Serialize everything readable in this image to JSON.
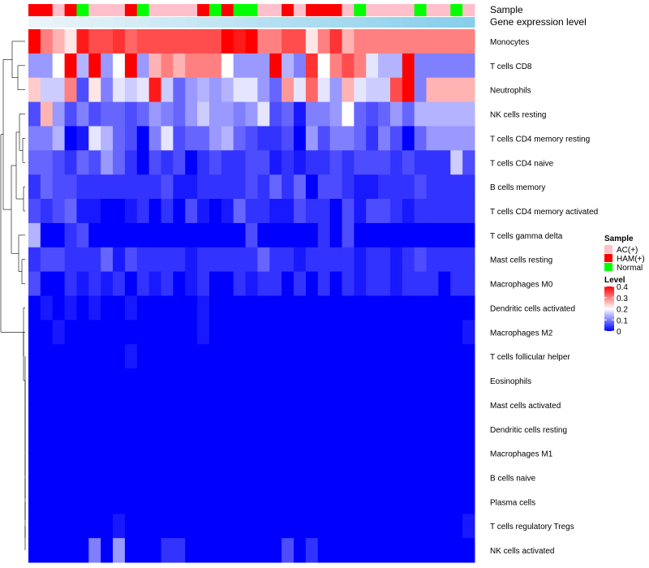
{
  "chart_data": {
    "type": "heatmap",
    "annotation_tracks": [
      "Sample",
      "Gene expression level"
    ],
    "sample_colors": {
      "AC(+)": "#ffc0cb",
      "HAM(+)": "#ff0000",
      "Normal": "#00ff00"
    },
    "samples": [
      "HAM(+)",
      "HAM(+)",
      "AC(+)",
      "HAM(+)",
      "Normal",
      "AC(+)",
      "AC(+)",
      "AC(+)",
      "HAM(+)",
      "Normal",
      "AC(+)",
      "AC(+)",
      "AC(+)",
      "AC(+)",
      "HAM(+)",
      "Normal",
      "HAM(+)",
      "Normal",
      "Normal",
      "AC(+)",
      "AC(+)",
      "HAM(+)",
      "AC(+)",
      "HAM(+)",
      "HAM(+)",
      "HAM(+)",
      "AC(+)",
      "Normal",
      "AC(+)",
      "AC(+)",
      "AC(+)",
      "AC(+)",
      "Normal",
      "AC(+)",
      "AC(+)",
      "Normal",
      "AC(+)"
    ],
    "rows": [
      "Monocytes",
      "T cells CD8",
      "Neutrophils",
      "NK cells resting",
      "T cells CD4 memory resting",
      "T cells CD4 naive",
      "B cells memory",
      "T cells CD4 memory activated",
      "T cells gamma delta",
      "Mast cells resting",
      "Macrophages M0",
      "Dendritic cells activated",
      "Macrophages M2",
      "T cells follicular helper",
      "Eosinophils",
      "Mast cells activated",
      "Dendritic cells resting",
      "Macrophages M1",
      "B cells naive",
      "Plasma cells",
      "T cells regulatory  Tregs",
      "NK cells activated"
    ],
    "values": [
      [
        0.42,
        0.3,
        0.26,
        0.22,
        0.38,
        0.34,
        0.34,
        0.36,
        0.32,
        0.34,
        0.34,
        0.34,
        0.34,
        0.34,
        0.34,
        0.34,
        0.4,
        0.38,
        0.42,
        0.3,
        0.3,
        0.34,
        0.34,
        0.22,
        0.3,
        0.36,
        0.26,
        0.3,
        0.3,
        0.3,
        0.3,
        0.3,
        0.3,
        0.3,
        0.3,
        0.3,
        0.3
      ],
      [
        0.12,
        0.12,
        0.2,
        0.42,
        0.14,
        0.4,
        0.12,
        0.2,
        0.42,
        0.12,
        0.26,
        0.3,
        0.26,
        0.3,
        0.3,
        0.3,
        0.2,
        0.12,
        0.12,
        0.12,
        0.4,
        0.14,
        0.1,
        0.36,
        0.2,
        0.3,
        0.34,
        0.3,
        0.18,
        0.14,
        0.14,
        0.4,
        0.1,
        0.1,
        0.1,
        0.1,
        0.1
      ],
      [
        0.24,
        0.16,
        0.16,
        0.3,
        0.06,
        0.22,
        0.1,
        0.18,
        0.16,
        0.18,
        0.38,
        0.16,
        0.08,
        0.12,
        0.14,
        0.12,
        0.14,
        0.18,
        0.18,
        0.12,
        0.08,
        0.28,
        0.18,
        0.32,
        0.18,
        0.12,
        0.26,
        0.18,
        0.16,
        0.16,
        0.34,
        0.42,
        0.1,
        0.26,
        0.26,
        0.26,
        0.26
      ],
      [
        0.06,
        0.26,
        0.12,
        0.06,
        0.1,
        0.06,
        0.08,
        0.08,
        0.06,
        0.08,
        0.12,
        0.1,
        0.08,
        0.12,
        0.16,
        0.12,
        0.12,
        0.1,
        0.12,
        0.18,
        0.06,
        0.08,
        0.02,
        0.1,
        0.1,
        0.12,
        0.2,
        0.08,
        0.06,
        0.08,
        0.12,
        0.08,
        0.14,
        0.14,
        0.14,
        0.14,
        0.14
      ],
      [
        0.1,
        0.1,
        0.14,
        0.0,
        0.02,
        0.18,
        0.14,
        0.08,
        0.06,
        0.0,
        0.1,
        0.18,
        0.06,
        0.08,
        0.08,
        0.12,
        0.14,
        0.08,
        0.06,
        0.04,
        0.04,
        0.06,
        0.0,
        0.12,
        0.06,
        0.1,
        0.1,
        0.08,
        0.04,
        0.1,
        0.06,
        0.0,
        0.08,
        0.12,
        0.12,
        0.12,
        0.12
      ],
      [
        0.08,
        0.08,
        0.06,
        0.04,
        0.08,
        0.06,
        0.12,
        0.08,
        0.04,
        0.0,
        0.06,
        0.04,
        0.06,
        0.0,
        0.04,
        0.06,
        0.04,
        0.04,
        0.06,
        0.06,
        0.02,
        0.04,
        0.02,
        0.04,
        0.04,
        0.06,
        0.04,
        0.06,
        0.06,
        0.06,
        0.04,
        0.06,
        0.04,
        0.04,
        0.04,
        0.16,
        0.06
      ],
      [
        0.04,
        0.08,
        0.06,
        0.06,
        0.04,
        0.04,
        0.04,
        0.04,
        0.04,
        0.04,
        0.04,
        0.06,
        0.02,
        0.02,
        0.04,
        0.04,
        0.04,
        0.04,
        0.06,
        0.04,
        0.08,
        0.04,
        0.08,
        0.0,
        0.06,
        0.06,
        0.04,
        0.02,
        0.02,
        0.04,
        0.04,
        0.04,
        0.06,
        0.04,
        0.04,
        0.04,
        0.04
      ],
      [
        0.06,
        0.04,
        0.06,
        0.08,
        0.02,
        0.02,
        0.0,
        0.0,
        0.02,
        0.04,
        0.0,
        0.04,
        0.0,
        0.06,
        0.02,
        0.0,
        0.02,
        0.08,
        0.04,
        0.04,
        0.02,
        0.02,
        0.06,
        0.04,
        0.04,
        0.0,
        0.06,
        0.02,
        0.06,
        0.06,
        0.04,
        0.02,
        0.04,
        0.04,
        0.04,
        0.04,
        0.04
      ],
      [
        0.14,
        0.0,
        0.0,
        0.04,
        0.06,
        0.0,
        0.0,
        0.0,
        0.0,
        0.0,
        0.0,
        0.0,
        0.0,
        0.0,
        0.0,
        0.0,
        0.0,
        0.0,
        0.06,
        0.0,
        0.0,
        0.0,
        0.0,
        0.0,
        0.04,
        0.0,
        0.06,
        0.0,
        0.0,
        0.0,
        0.0,
        0.0,
        0.0,
        0.0,
        0.0,
        0.0,
        0.0
      ],
      [
        0.04,
        0.06,
        0.06,
        0.04,
        0.04,
        0.04,
        0.08,
        0.02,
        0.06,
        0.04,
        0.04,
        0.04,
        0.04,
        0.02,
        0.04,
        0.04,
        0.04,
        0.04,
        0.04,
        0.08,
        0.04,
        0.04,
        0.02,
        0.04,
        0.04,
        0.04,
        0.04,
        0.02,
        0.04,
        0.04,
        0.02,
        0.04,
        0.06,
        0.04,
        0.04,
        0.04,
        0.04
      ],
      [
        0.06,
        0.0,
        0.0,
        0.04,
        0.02,
        0.04,
        0.02,
        0.04,
        0.0,
        0.04,
        0.02,
        0.04,
        0.0,
        0.02,
        0.04,
        0.0,
        0.0,
        0.04,
        0.02,
        0.04,
        0.04,
        0.0,
        0.04,
        0.0,
        0.04,
        0.0,
        0.04,
        0.02,
        0.04,
        0.04,
        0.02,
        0.04,
        0.04,
        0.04,
        0.0,
        0.04,
        0.04
      ],
      [
        0.0,
        0.02,
        0.0,
        0.02,
        0.0,
        0.02,
        0.0,
        0.0,
        0.02,
        0.0,
        0.0,
        0.0,
        0.0,
        0.0,
        0.02,
        0.0,
        0.0,
        0.0,
        0.0,
        0.0,
        0.0,
        0.0,
        0.0,
        0.0,
        0.0,
        0.0,
        0.0,
        0.0,
        0.0,
        0.0,
        0.0,
        0.0,
        0.0,
        0.0,
        0.0,
        0.0,
        0.0
      ],
      [
        0.0,
        0.0,
        0.02,
        0.0,
        0.0,
        0.0,
        0.0,
        0.0,
        0.0,
        0.0,
        0.0,
        0.0,
        0.0,
        0.0,
        0.02,
        0.0,
        0.0,
        0.0,
        0.0,
        0.0,
        0.0,
        0.0,
        0.0,
        0.0,
        0.0,
        0.0,
        0.0,
        0.0,
        0.0,
        0.0,
        0.0,
        0.0,
        0.0,
        0.0,
        0.0,
        0.0,
        0.02
      ],
      [
        0.0,
        0.0,
        0.0,
        0.0,
        0.0,
        0.0,
        0.0,
        0.0,
        0.02,
        0.0,
        0.0,
        0.0,
        0.0,
        0.0,
        0.0,
        0.0,
        0.0,
        0.0,
        0.0,
        0.0,
        0.0,
        0.0,
        0.0,
        0.0,
        0.0,
        0.0,
        0.0,
        0.0,
        0.0,
        0.0,
        0.0,
        0.0,
        0.0,
        0.0,
        0.0,
        0.0,
        0.0
      ],
      [
        0.0,
        0.0,
        0.0,
        0.0,
        0.0,
        0.0,
        0.0,
        0.0,
        0.0,
        0.0,
        0.0,
        0.0,
        0.0,
        0.0,
        0.0,
        0.0,
        0.0,
        0.0,
        0.0,
        0.0,
        0.0,
        0.0,
        0.0,
        0.0,
        0.0,
        0.0,
        0.0,
        0.0,
        0.0,
        0.0,
        0.0,
        0.0,
        0.0,
        0.0,
        0.0,
        0.0,
        0.0
      ],
      [
        0.0,
        0.0,
        0.0,
        0.0,
        0.0,
        0.0,
        0.0,
        0.0,
        0.0,
        0.0,
        0.0,
        0.0,
        0.0,
        0.0,
        0.0,
        0.0,
        0.0,
        0.0,
        0.0,
        0.0,
        0.0,
        0.0,
        0.0,
        0.0,
        0.0,
        0.0,
        0.0,
        0.0,
        0.0,
        0.0,
        0.0,
        0.0,
        0.0,
        0.0,
        0.0,
        0.0,
        0.0
      ],
      [
        0.0,
        0.0,
        0.0,
        0.0,
        0.0,
        0.0,
        0.0,
        0.0,
        0.0,
        0.0,
        0.0,
        0.0,
        0.0,
        0.0,
        0.0,
        0.0,
        0.0,
        0.0,
        0.0,
        0.0,
        0.0,
        0.0,
        0.0,
        0.0,
        0.0,
        0.0,
        0.0,
        0.0,
        0.0,
        0.0,
        0.0,
        0.0,
        0.0,
        0.0,
        0.0,
        0.0,
        0.0
      ],
      [
        0.0,
        0.0,
        0.0,
        0.0,
        0.0,
        0.0,
        0.0,
        0.0,
        0.0,
        0.0,
        0.0,
        0.0,
        0.0,
        0.0,
        0.0,
        0.0,
        0.0,
        0.0,
        0.0,
        0.0,
        0.0,
        0.0,
        0.0,
        0.0,
        0.0,
        0.0,
        0.0,
        0.0,
        0.0,
        0.0,
        0.0,
        0.0,
        0.0,
        0.0,
        0.0,
        0.0,
        0.0
      ],
      [
        0.0,
        0.0,
        0.0,
        0.0,
        0.0,
        0.0,
        0.0,
        0.0,
        0.0,
        0.0,
        0.0,
        0.0,
        0.0,
        0.0,
        0.0,
        0.0,
        0.0,
        0.0,
        0.0,
        0.0,
        0.0,
        0.0,
        0.0,
        0.0,
        0.0,
        0.0,
        0.0,
        0.0,
        0.0,
        0.0,
        0.0,
        0.0,
        0.0,
        0.0,
        0.0,
        0.0,
        0.0
      ],
      [
        0.0,
        0.0,
        0.0,
        0.0,
        0.0,
        0.0,
        0.0,
        0.0,
        0.0,
        0.0,
        0.0,
        0.0,
        0.0,
        0.0,
        0.0,
        0.0,
        0.0,
        0.0,
        0.0,
        0.0,
        0.0,
        0.0,
        0.0,
        0.0,
        0.0,
        0.0,
        0.0,
        0.0,
        0.0,
        0.0,
        0.0,
        0.0,
        0.0,
        0.0,
        0.0,
        0.0,
        0.0
      ],
      [
        0.0,
        0.0,
        0.0,
        0.0,
        0.0,
        0.0,
        0.0,
        0.02,
        0.0,
        0.0,
        0.0,
        0.0,
        0.0,
        0.0,
        0.0,
        0.0,
        0.0,
        0.0,
        0.0,
        0.0,
        0.0,
        0.0,
        0.0,
        0.0,
        0.0,
        0.0,
        0.0,
        0.0,
        0.0,
        0.0,
        0.0,
        0.0,
        0.0,
        0.0,
        0.0,
        0.0,
        0.02
      ],
      [
        0.0,
        0.0,
        0.0,
        0.0,
        0.0,
        0.1,
        0.0,
        0.12,
        0.0,
        0.0,
        0.0,
        0.04,
        0.04,
        0.0,
        0.0,
        0.0,
        0.0,
        0.0,
        0.0,
        0.0,
        0.0,
        0.06,
        0.0,
        0.04,
        0.0,
        0.0,
        0.0,
        0.0,
        0.0,
        0.0,
        0.0,
        0.0,
        0.0,
        0.0,
        0.0,
        0.0,
        0.0
      ]
    ],
    "legend": {
      "sample_title": "Sample",
      "sample_entries": [
        "AC(+)",
        "HAM(+)",
        "Normal"
      ],
      "level_title": "Level",
      "level_ticks": [
        0.4,
        0.3,
        0.2,
        0.1,
        0
      ],
      "level_range": [
        0,
        0.4
      ],
      "level_colors": [
        "#0000ff",
        "#ffffff",
        "#ff0000"
      ],
      "placement": "right"
    },
    "row_dendrogram": true,
    "column_dendrogram": false,
    "expression_track_color": "#87ceeb"
  }
}
